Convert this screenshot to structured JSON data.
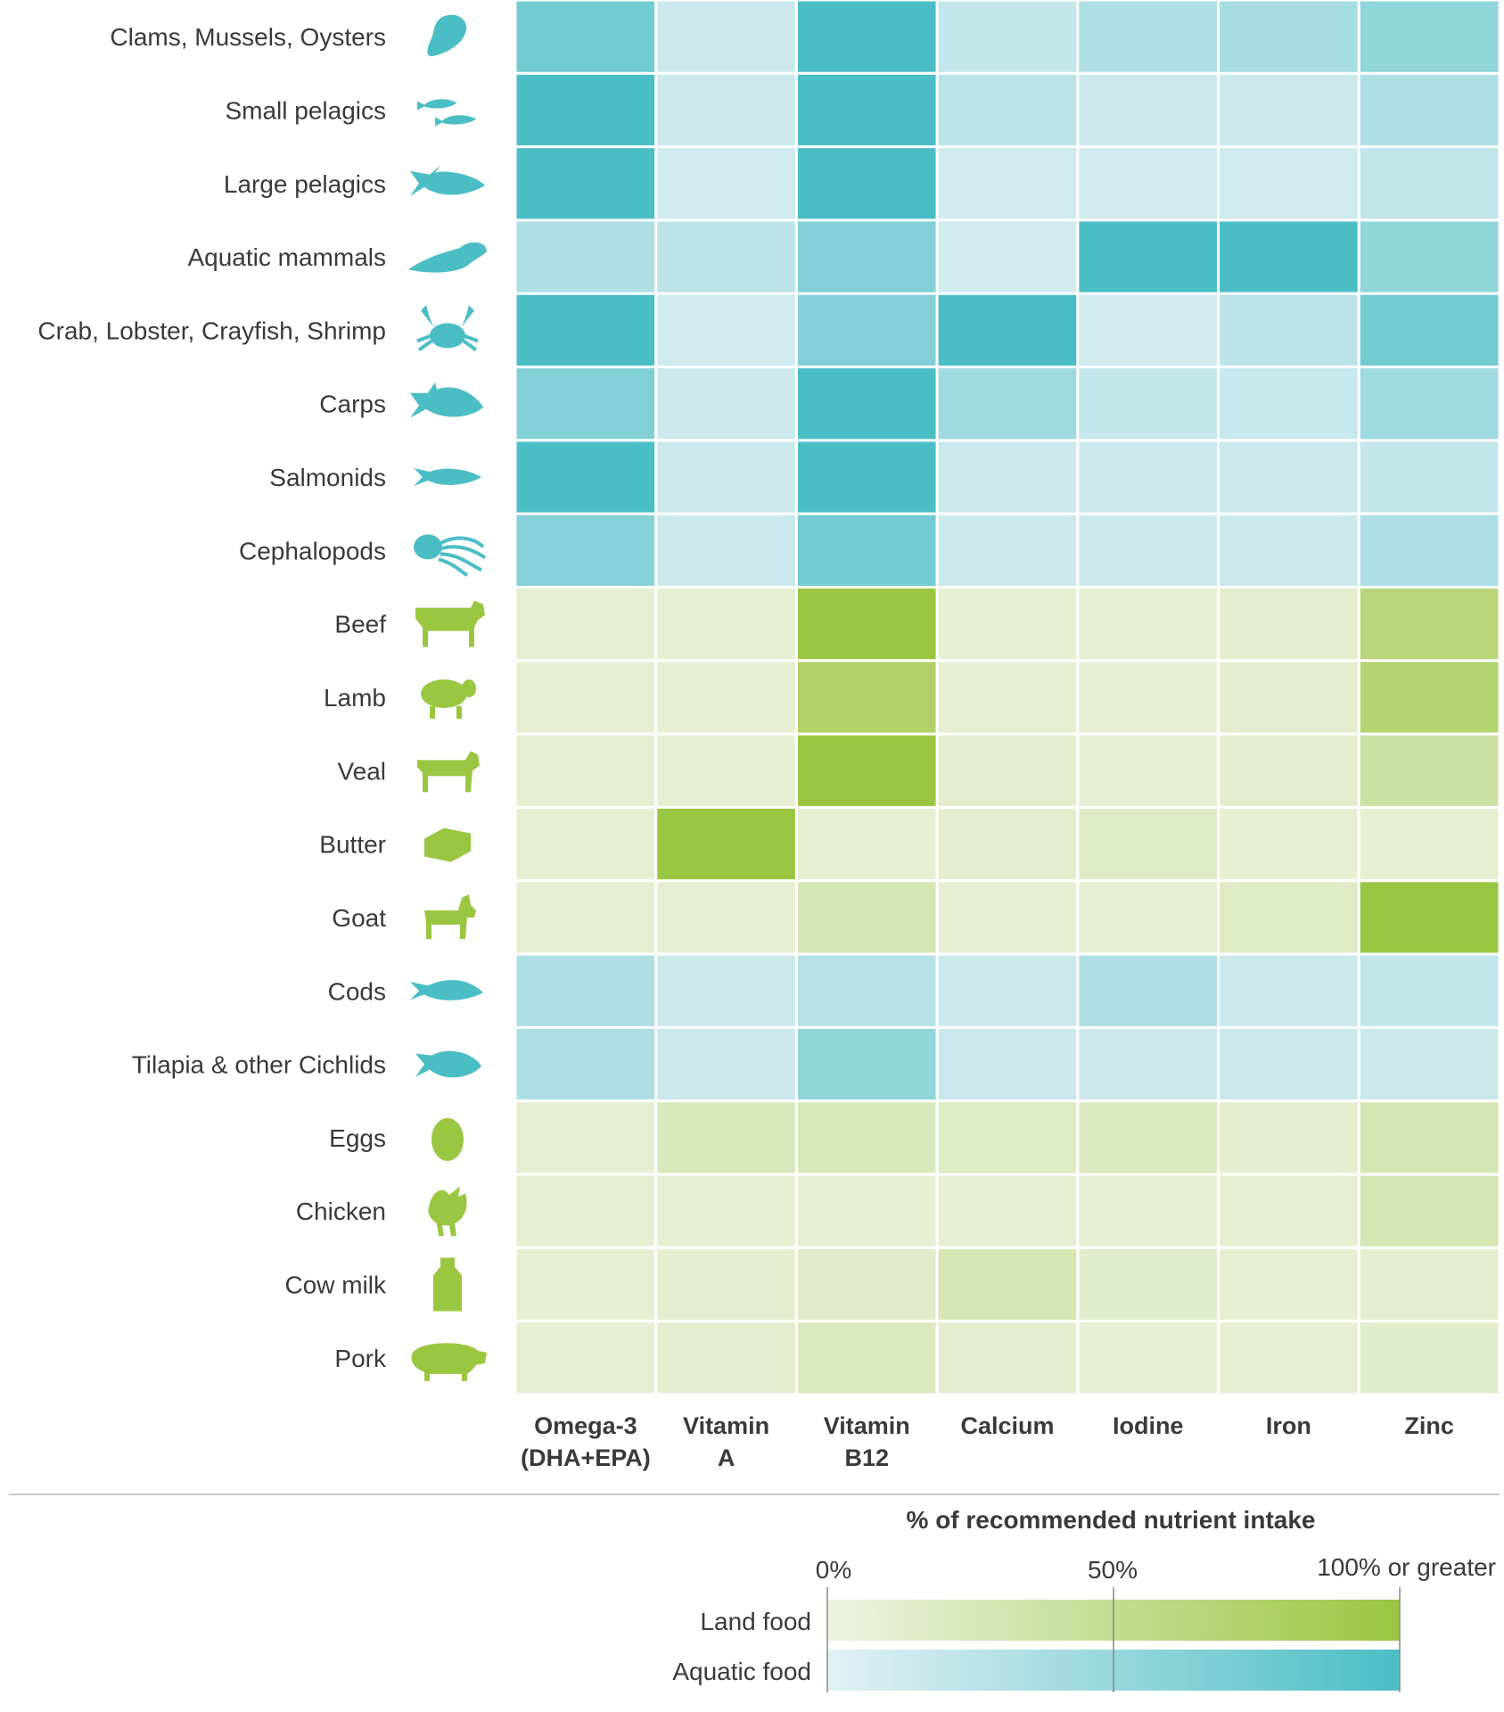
{
  "chart_data": {
    "type": "heatmap",
    "title": "",
    "xlabel": "",
    "ylabel": "",
    "columns": [
      [
        "Omega-3",
        "(DHA+EPA)"
      ],
      [
        "Vitamin",
        "A"
      ],
      [
        "Vitamin",
        "B12"
      ],
      [
        "Calcium"
      ],
      [
        "Iodine"
      ],
      [
        "Iron"
      ],
      [
        "Zinc"
      ]
    ],
    "rows": [
      {
        "label": "Clams, Mussels, Oysters",
        "group": "aquatic",
        "icon": "clam-icon",
        "values": [
          75,
          15,
          100,
          20,
          35,
          40,
          55
        ]
      },
      {
        "label": "Small pelagics",
        "group": "aquatic",
        "icon": "small-fish-icon",
        "values": [
          100,
          15,
          100,
          25,
          15,
          15,
          35
        ]
      },
      {
        "label": "Large pelagics",
        "group": "aquatic",
        "icon": "tuna-icon",
        "values": [
          100,
          12,
          100,
          12,
          12,
          12,
          22
        ]
      },
      {
        "label": "Aquatic mammals",
        "group": "aquatic",
        "icon": "seal-icon",
        "values": [
          35,
          25,
          65,
          12,
          100,
          100,
          55
        ]
      },
      {
        "label": "Crab, Lobster, Crayfish, Shrimp",
        "group": "aquatic",
        "icon": "crab-icon",
        "values": [
          100,
          12,
          65,
          100,
          12,
          25,
          75
        ]
      },
      {
        "label": "Carps",
        "group": "aquatic",
        "icon": "carp-icon",
        "values": [
          65,
          15,
          100,
          45,
          20,
          18,
          45
        ]
      },
      {
        "label": "Salmonids",
        "group": "aquatic",
        "icon": "salmon-icon",
        "values": [
          100,
          15,
          100,
          15,
          15,
          15,
          20
        ]
      },
      {
        "label": "Cephalopods",
        "group": "aquatic",
        "icon": "octopus-icon",
        "values": [
          60,
          15,
          75,
          15,
          15,
          15,
          35
        ]
      },
      {
        "label": "Beef",
        "group": "land",
        "icon": "cow-icon",
        "values": [
          10,
          10,
          100,
          10,
          10,
          12,
          65
        ]
      },
      {
        "label": "Lamb",
        "group": "land",
        "icon": "sheep-icon",
        "values": [
          10,
          10,
          75,
          10,
          10,
          12,
          70
        ]
      },
      {
        "label": "Veal",
        "group": "land",
        "icon": "calf-icon",
        "values": [
          10,
          10,
          100,
          12,
          10,
          12,
          40
        ]
      },
      {
        "label": "Butter",
        "group": "land",
        "icon": "butter-icon",
        "values": [
          10,
          100,
          10,
          12,
          18,
          10,
          10
        ]
      },
      {
        "label": "Goat",
        "group": "land",
        "icon": "goat-icon",
        "values": [
          10,
          10,
          30,
          10,
          10,
          18,
          100
        ]
      },
      {
        "label": "Cods",
        "group": "aquatic",
        "icon": "cod-icon",
        "values": [
          35,
          15,
          30,
          15,
          35,
          15,
          22
        ]
      },
      {
        "label": "Tilapia & other Cichlids",
        "group": "aquatic",
        "icon": "tilapia-icon",
        "values": [
          35,
          15,
          55,
          15,
          15,
          15,
          15
        ]
      },
      {
        "label": "Eggs",
        "group": "land",
        "icon": "egg-icon",
        "values": [
          10,
          25,
          25,
          18,
          22,
          12,
          30
        ]
      },
      {
        "label": "Chicken",
        "group": "land",
        "icon": "rooster-icon",
        "values": [
          10,
          10,
          10,
          10,
          10,
          10,
          30
        ]
      },
      {
        "label": "Cow milk",
        "group": "land",
        "icon": "milk-bottle-icon",
        "values": [
          10,
          12,
          15,
          30,
          14,
          10,
          12
        ]
      },
      {
        "label": "Pork",
        "group": "land",
        "icon": "pig-icon",
        "values": [
          10,
          12,
          22,
          12,
          10,
          10,
          14
        ]
      }
    ],
    "value_range": [
      0,
      100
    ],
    "colors": {
      "land": [
        "#eef3e2",
        "#9bc641"
      ],
      "aquatic": [
        "#e2f1f4",
        "#4bbec5"
      ],
      "aquatic_icon": "#4bbec5",
      "land_icon": "#9bc641"
    },
    "legend": {
      "title": "% of recommended nutrient intake",
      "ticks": [
        "0%",
        "50%",
        "100% or greater"
      ],
      "series": [
        "Land food",
        "Aquatic food"
      ]
    }
  }
}
